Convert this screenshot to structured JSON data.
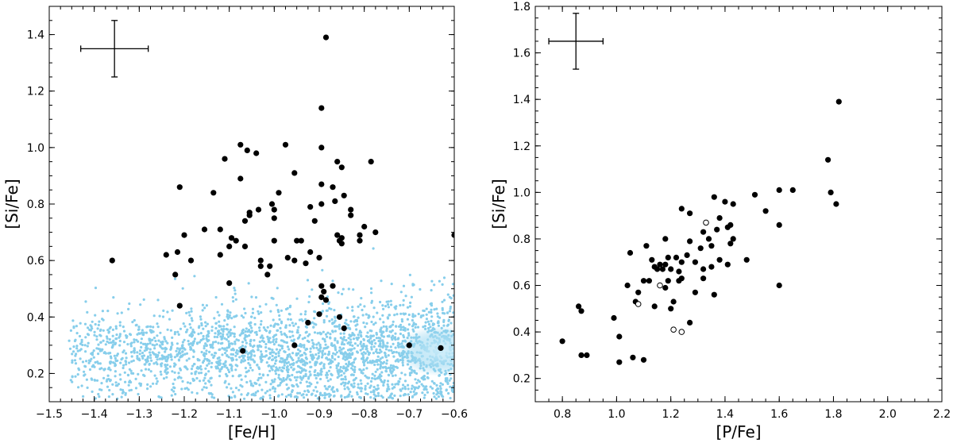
{
  "chart_data": [
    {
      "type": "scatter",
      "xlabel": "[Fe/H]",
      "ylabel": "[Si/Fe]",
      "xlim": [
        -1.5,
        -0.6
      ],
      "ylim": [
        0.1,
        1.5
      ],
      "xticks": [
        -1.5,
        -1.4,
        -1.3,
        -1.2,
        -1.1,
        -1.0,
        -0.9,
        -0.8,
        -0.7,
        -0.6
      ],
      "xtick_labels": [
        "−1.5",
        "−1.4",
        "−1.3",
        "−1.2",
        "−1.1",
        "−1.0",
        "−0.9",
        "−0.8",
        "−0.7",
        "−0.6"
      ],
      "yticks": [
        0.2,
        0.4,
        0.6,
        0.8,
        1.0,
        1.2,
        1.4
      ],
      "ytick_labels": [
        "0.2",
        "0.4",
        "0.6",
        "0.8",
        "1.0",
        "1.2",
        "1.4"
      ],
      "grid": false,
      "error_bar": {
        "x": -1.355,
        "y": 1.35,
        "xerr": 0.075,
        "yerr": 0.1
      },
      "background": {
        "color": "#87CEEB",
        "n_points": 2600,
        "x_range": [
          -1.46,
          -0.6
        ],
        "y_center": 0.27,
        "y_spread": 0.09,
        "dense_core": {
          "x": -0.63,
          "y": 0.28
        }
      },
      "series": [
        {
          "marker": "filled",
          "color": "#000000",
          "points": [
            [
              -0.885,
              1.39
            ],
            [
              -0.895,
              1.14
            ],
            [
              -1.075,
              1.01
            ],
            [
              -0.975,
              1.01
            ],
            [
              -1.06,
              0.99
            ],
            [
              -1.04,
              0.98
            ],
            [
              -0.895,
              1.0
            ],
            [
              -1.11,
              0.96
            ],
            [
              -0.86,
              0.95
            ],
            [
              -0.785,
              0.95
            ],
            [
              -0.85,
              0.93
            ],
            [
              -0.955,
              0.91
            ],
            [
              -1.075,
              0.89
            ],
            [
              -0.895,
              0.87
            ],
            [
              -0.87,
              0.86
            ],
            [
              -1.21,
              0.86
            ],
            [
              -1.135,
              0.84
            ],
            [
              -0.99,
              0.84
            ],
            [
              -0.845,
              0.83
            ],
            [
              -0.865,
              0.81
            ],
            [
              -1.005,
              0.8
            ],
            [
              -0.92,
              0.79
            ],
            [
              -0.895,
              0.8
            ],
            [
              -0.83,
              0.78
            ],
            [
              -0.83,
              0.76
            ],
            [
              -1.055,
              0.77
            ],
            [
              -1.0,
              0.78
            ],
            [
              -1.035,
              0.78
            ],
            [
              -1.055,
              0.76
            ],
            [
              -1.0,
              0.75
            ],
            [
              -1.065,
              0.74
            ],
            [
              -0.8,
              0.72
            ],
            [
              -1.12,
              0.71
            ],
            [
              -1.155,
              0.71
            ],
            [
              -0.91,
              0.74
            ],
            [
              -0.775,
              0.7
            ],
            [
              -0.81,
              0.69
            ],
            [
              -0.86,
              0.69
            ],
            [
              -0.85,
              0.68
            ],
            [
              -0.81,
              0.67
            ],
            [
              -1.2,
              0.69
            ],
            [
              -1.095,
              0.68
            ],
            [
              -1.085,
              0.67
            ],
            [
              -0.95,
              0.67
            ],
            [
              -0.94,
              0.67
            ],
            [
              -1.0,
              0.67
            ],
            [
              -1.1,
              0.65
            ],
            [
              -1.065,
              0.65
            ],
            [
              -0.855,
              0.67
            ],
            [
              -0.85,
              0.66
            ],
            [
              -0.92,
              0.63
            ],
            [
              -1.24,
              0.62
            ],
            [
              -1.12,
              0.62
            ],
            [
              -1.03,
              0.6
            ],
            [
              -1.03,
              0.58
            ],
            [
              -1.01,
              0.58
            ],
            [
              -0.97,
              0.61
            ],
            [
              -0.955,
              0.6
            ],
            [
              -0.9,
              0.61
            ],
            [
              -1.215,
              0.63
            ],
            [
              -1.185,
              0.6
            ],
            [
              -0.93,
              0.59
            ],
            [
              -0.6,
              0.69
            ],
            [
              -1.36,
              0.6
            ],
            [
              -1.22,
              0.55
            ],
            [
              -1.1,
              0.52
            ],
            [
              -1.015,
              0.55
            ],
            [
              -0.895,
              0.51
            ],
            [
              -0.87,
              0.51
            ],
            [
              -0.89,
              0.49
            ],
            [
              -0.895,
              0.47
            ],
            [
              -0.885,
              0.46
            ],
            [
              -1.21,
              0.44
            ],
            [
              -0.9,
              0.41
            ],
            [
              -0.855,
              0.4
            ],
            [
              -0.925,
              0.38
            ],
            [
              -0.845,
              0.36
            ],
            [
              -1.07,
              0.28
            ],
            [
              -0.955,
              0.3
            ],
            [
              -0.7,
              0.3
            ],
            [
              -0.63,
              0.29
            ]
          ]
        }
      ]
    },
    {
      "type": "scatter",
      "xlabel": "[P/Fe]",
      "ylabel": "[Si/Fe]",
      "xlim": [
        0.7,
        2.2
      ],
      "ylim": [
        0.1,
        1.8
      ],
      "xticks": [
        0.8,
        1.0,
        1.2,
        1.4,
        1.6,
        1.8,
        2.0,
        2.2
      ],
      "xtick_labels": [
        "0.8",
        "1.0",
        "1.2",
        "1.4",
        "1.6",
        "1.8",
        "2.0",
        "2.2"
      ],
      "yticks": [
        0.2,
        0.4,
        0.6,
        0.8,
        1.0,
        1.2,
        1.4,
        1.6,
        1.8
      ],
      "ytick_labels": [
        "0.2",
        "0.4",
        "0.6",
        "0.8",
        "1.0",
        "1.2",
        "1.4",
        "1.6",
        "1.8"
      ],
      "grid": false,
      "error_bar": {
        "x": 0.85,
        "y": 1.65,
        "xerr": 0.1,
        "yerr": 0.12
      },
      "series": [
        {
          "marker": "filled",
          "color": "#000000",
          "points": [
            [
              1.82,
              1.39
            ],
            [
              1.78,
              1.14
            ],
            [
              1.79,
              1.0
            ],
            [
              1.81,
              0.95
            ],
            [
              1.6,
              1.01
            ],
            [
              1.65,
              1.01
            ],
            [
              1.51,
              0.99
            ],
            [
              1.55,
              0.92
            ],
            [
              1.36,
              0.98
            ],
            [
              1.4,
              0.96
            ],
            [
              1.43,
              0.95
            ],
            [
              1.24,
              0.93
            ],
            [
              1.38,
              0.89
            ],
            [
              1.27,
              0.91
            ],
            [
              1.6,
              0.86
            ],
            [
              1.42,
              0.86
            ],
            [
              1.37,
              0.84
            ],
            [
              1.41,
              0.85
            ],
            [
              1.32,
              0.83
            ],
            [
              1.18,
              0.8
            ],
            [
              1.34,
              0.8
            ],
            [
              1.43,
              0.8
            ],
            [
              1.27,
              0.79
            ],
            [
              1.42,
              0.78
            ],
            [
              1.35,
              0.77
            ],
            [
              1.11,
              0.77
            ],
            [
              1.31,
              0.76
            ],
            [
              1.05,
              0.74
            ],
            [
              1.22,
              0.72
            ],
            [
              1.26,
              0.73
            ],
            [
              1.38,
              0.71
            ],
            [
              1.48,
              0.71
            ],
            [
              1.19,
              0.72
            ],
            [
              1.13,
              0.71
            ],
            [
              1.29,
              0.7
            ],
            [
              1.24,
              0.7
            ],
            [
              1.41,
              0.69
            ],
            [
              1.35,
              0.68
            ],
            [
              1.18,
              0.69
            ],
            [
              1.16,
              0.69
            ],
            [
              1.14,
              0.68
            ],
            [
              1.17,
              0.67
            ],
            [
              1.15,
              0.67
            ],
            [
              1.2,
              0.67
            ],
            [
              1.32,
              0.67
            ],
            [
              1.23,
              0.66
            ],
            [
              1.24,
              0.63
            ],
            [
              1.23,
              0.62
            ],
            [
              1.1,
              0.62
            ],
            [
              1.12,
              0.62
            ],
            [
              1.19,
              0.62
            ],
            [
              1.32,
              0.63
            ],
            [
              1.04,
              0.6
            ],
            [
              1.6,
              0.6
            ],
            [
              1.08,
              0.57
            ],
            [
              1.18,
              0.59
            ],
            [
              1.36,
              0.56
            ],
            [
              1.14,
              0.51
            ],
            [
              1.21,
              0.53
            ],
            [
              1.29,
              0.57
            ],
            [
              1.07,
              0.53
            ],
            [
              1.2,
              0.5
            ],
            [
              0.86,
              0.51
            ],
            [
              0.87,
              0.49
            ],
            [
              0.99,
              0.46
            ],
            [
              1.27,
              0.44
            ],
            [
              1.01,
              0.38
            ],
            [
              0.8,
              0.36
            ],
            [
              0.87,
              0.3
            ],
            [
              0.89,
              0.3
            ],
            [
              1.06,
              0.29
            ],
            [
              1.1,
              0.28
            ],
            [
              1.01,
              0.27
            ]
          ]
        },
        {
          "marker": "open",
          "color": "#000000",
          "points": [
            [
              1.33,
              0.87
            ],
            [
              1.16,
              0.6
            ],
            [
              1.08,
              0.52
            ],
            [
              1.21,
              0.41
            ],
            [
              1.24,
              0.4
            ]
          ]
        }
      ]
    }
  ]
}
